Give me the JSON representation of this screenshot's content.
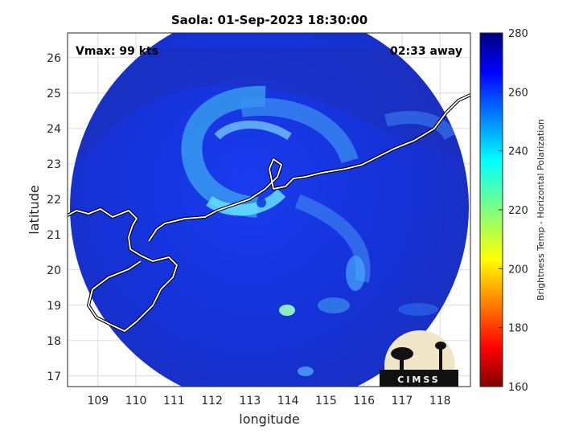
{
  "chart_data": {
    "type": "heatmap",
    "title": "Saola: 01-Sep-2023 18:30:00",
    "xlabel": "longitude",
    "ylabel": "latitude",
    "xlim": [
      108.2,
      118.8
    ],
    "ylim": [
      16.7,
      26.7
    ],
    "xticks": [
      "109",
      "110",
      "111",
      "112",
      "113",
      "114",
      "115",
      "116",
      "117",
      "118"
    ],
    "yticks": [
      "17",
      "18",
      "19",
      "20",
      "21",
      "22",
      "23",
      "24",
      "25",
      "26"
    ],
    "grid": true,
    "annotations": {
      "vmax": "Vmax: 99 kts",
      "away": "02:33 away"
    },
    "storm_center": {
      "lon": 113.3,
      "lat": 21.9
    },
    "colorbar": {
      "label": "Brightness Temp - Horizontal Polarization",
      "min": 160,
      "max": 280,
      "ticks": [
        "160",
        "180",
        "200",
        "220",
        "240",
        "260",
        "280"
      ],
      "colormap": "jet"
    },
    "logo_text": "CIMSS"
  }
}
